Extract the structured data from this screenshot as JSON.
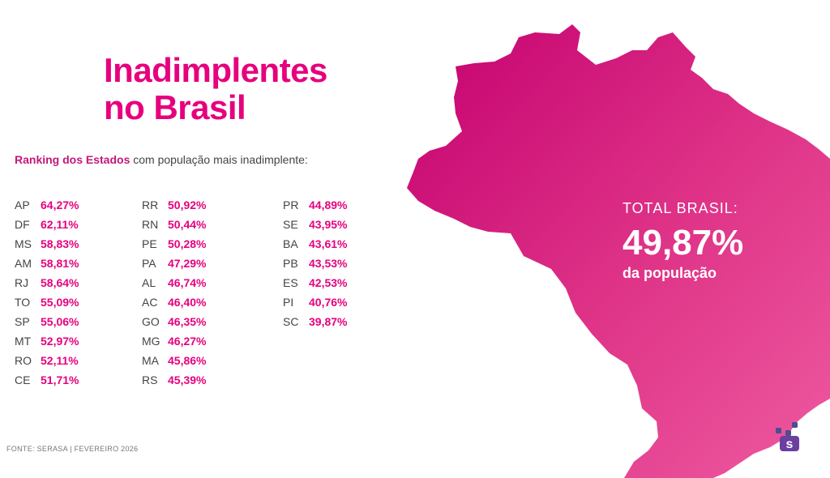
{
  "title": {
    "line1": "Inadimplentes",
    "line2": "no Brasil"
  },
  "subtitle": {
    "bold": "Ranking dos Estados",
    "rest": " com população mais inadimplente:"
  },
  "ranking": {
    "col1": [
      {
        "uf": "AP",
        "value": "64,27%"
      },
      {
        "uf": "DF",
        "value": "62,11%"
      },
      {
        "uf": "MS",
        "value": "58,83%"
      },
      {
        "uf": "AM",
        "value": "58,81%"
      },
      {
        "uf": "RJ",
        "value": "58,64%"
      },
      {
        "uf": "TO",
        "value": "55,09%"
      },
      {
        "uf": "SP",
        "value": "55,06%"
      },
      {
        "uf": "MT",
        "value": "52,97%"
      },
      {
        "uf": "RO",
        "value": "52,11%"
      },
      {
        "uf": "CE",
        "value": "51,71%"
      }
    ],
    "col2": [
      {
        "uf": "RR",
        "value": "50,92%"
      },
      {
        "uf": "RN",
        "value": "50,44%"
      },
      {
        "uf": "PE",
        "value": "50,28%"
      },
      {
        "uf": "PA",
        "value": "47,29%"
      },
      {
        "uf": "AL",
        "value": "46,74%"
      },
      {
        "uf": "AC",
        "value": "46,40%"
      },
      {
        "uf": "GO",
        "value": "46,35%"
      },
      {
        "uf": "MG",
        "value": "46,27%"
      },
      {
        "uf": "MA",
        "value": "45,86%"
      },
      {
        "uf": "RS",
        "value": "45,39%"
      }
    ],
    "col3": [
      {
        "uf": "PR",
        "value": "44,89%"
      },
      {
        "uf": "SE",
        "value": "43,95%"
      },
      {
        "uf": "BA",
        "value": "43,61%"
      },
      {
        "uf": "PB",
        "value": "43,53%"
      },
      {
        "uf": "ES",
        "value": "42,53%"
      },
      {
        "uf": "PI",
        "value": "40,76%"
      },
      {
        "uf": "SC",
        "value": "39,87%"
      }
    ]
  },
  "total": {
    "label": "TOTAL BRASIL:",
    "value": "49,87%",
    "sub": "da população"
  },
  "source": "FONTE: SERASA | FEVEREIRO 2026",
  "vertical_text": "FEVEREIRO 2026",
  "colors": {
    "accent": "#e6007e",
    "map_dark": "#c2006e",
    "map_light": "#ec4f9a",
    "text": "#444444"
  },
  "icons": {
    "map": "brazil-map",
    "logo": "serasa-logo"
  }
}
